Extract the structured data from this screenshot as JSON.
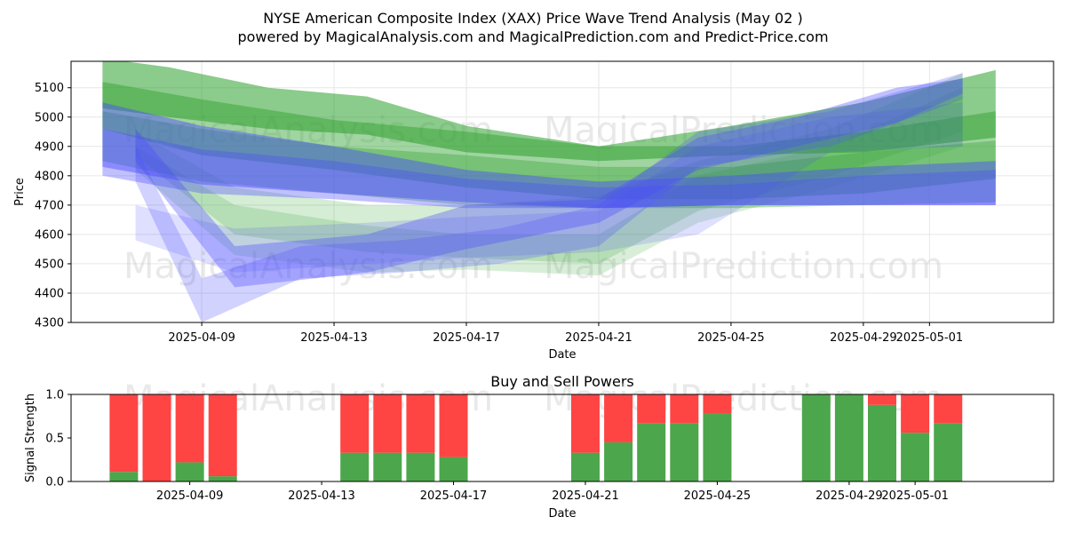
{
  "title_line1": "NYSE American Composite Index (XAX) Price Wave Trend Analysis (May 02 )",
  "title_line2": "powered by MagicalAnalysis.com and MagicalPrediction.com and Predict-Price.com",
  "watermarks": [
    "MagicalAnalysis.com",
    "MagicalPrediction.com"
  ],
  "chart_data": [
    {
      "type": "area",
      "title": "",
      "xlabel": "Date",
      "ylabel": "Price",
      "ylim": [
        4300,
        5190
      ],
      "xlim": [
        "2025-04-05",
        "2025-05-04"
      ],
      "y_ticks": [
        4300,
        4400,
        4500,
        4600,
        4700,
        4800,
        4900,
        5000,
        5100
      ],
      "x_ticks": [
        "2025-04-09",
        "2025-04-13",
        "2025-04-17",
        "2025-04-21",
        "2025-04-25",
        "2025-04-29",
        "2025-05-01"
      ],
      "grid": true,
      "series_colors": {
        "green": "#2ca02c",
        "blue": "#4b4bff"
      },
      "bands": [
        {
          "color": "green",
          "opacity": 0.55,
          "x": [
            "2025-04-06",
            "2025-04-08",
            "2025-04-11",
            "2025-04-14",
            "2025-04-17",
            "2025-04-21",
            "2025-04-25",
            "2025-04-29",
            "2025-05-03"
          ],
          "upper": [
            5200,
            5170,
            5100,
            5070,
            4970,
            4900,
            4970,
            5050,
            5160
          ],
          "lower": [
            5030,
            5000,
            4960,
            4940,
            4880,
            4850,
            4870,
            4880,
            4930
          ]
        },
        {
          "color": "green",
          "opacity": 0.45,
          "x": [
            "2025-04-06",
            "2025-04-09",
            "2025-04-13",
            "2025-04-17",
            "2025-04-21",
            "2025-04-25",
            "2025-04-29",
            "2025-05-03"
          ],
          "upper": [
            5120,
            5060,
            4990,
            4950,
            4900,
            4900,
            4950,
            5020
          ],
          "lower": [
            4960,
            4870,
            4820,
            4760,
            4720,
            4720,
            4740,
            4790
          ]
        },
        {
          "color": "green",
          "opacity": 0.35,
          "x": [
            "2025-04-06",
            "2025-04-09",
            "2025-04-13",
            "2025-04-17",
            "2025-04-21",
            "2025-04-25",
            "2025-04-29",
            "2025-05-03"
          ],
          "upper": [
            5020,
            4960,
            4900,
            4870,
            4830,
            4830,
            4880,
            4920
          ],
          "lower": [
            4850,
            4780,
            4740,
            4700,
            4690,
            4690,
            4700,
            4710
          ]
        },
        {
          "color": "green",
          "opacity": 0.2,
          "x": [
            "2025-04-07",
            "2025-04-10",
            "2025-04-14",
            "2025-04-17",
            "2025-04-21",
            "2025-04-24",
            "2025-04-28",
            "2025-05-02"
          ],
          "upper": [
            4950,
            4760,
            4700,
            4700,
            4730,
            4850,
            4960,
            5150
          ],
          "lower": [
            4870,
            4600,
            4540,
            4520,
            4500,
            4680,
            4800,
            4950
          ]
        },
        {
          "color": "green",
          "opacity": 0.18,
          "x": [
            "2025-04-07",
            "2025-04-10",
            "2025-04-14",
            "2025-04-17",
            "2025-04-21",
            "2025-04-24",
            "2025-04-28",
            "2025-05-02"
          ],
          "upper": [
            4900,
            4700,
            4630,
            4600,
            4600,
            4800,
            4900,
            5100
          ],
          "lower": [
            4820,
            4530,
            4470,
            4480,
            4460,
            4640,
            4760,
            4900
          ]
        },
        {
          "color": "blue",
          "opacity": 0.45,
          "x": [
            "2025-04-06",
            "2025-04-09",
            "2025-04-13",
            "2025-04-17",
            "2025-04-21",
            "2025-04-25",
            "2025-04-29",
            "2025-05-03"
          ],
          "upper": [
            5050,
            4970,
            4900,
            4820,
            4780,
            4800,
            4830,
            4850
          ],
          "lower": [
            4830,
            4770,
            4740,
            4710,
            4690,
            4700,
            4700,
            4700
          ]
        },
        {
          "color": "blue",
          "opacity": 0.35,
          "x": [
            "2025-04-06",
            "2025-04-09",
            "2025-04-13",
            "2025-04-17",
            "2025-04-21",
            "2025-04-25",
            "2025-04-29",
            "2025-05-03"
          ],
          "upper": [
            4960,
            4890,
            4850,
            4790,
            4760,
            4770,
            4800,
            4820
          ],
          "lower": [
            4800,
            4740,
            4720,
            4690,
            4690,
            4700,
            4700,
            4700
          ]
        },
        {
          "color": "blue",
          "opacity": 0.35,
          "x": [
            "2025-04-07",
            "2025-04-10",
            "2025-04-14",
            "2025-04-17",
            "2025-04-21",
            "2025-04-24",
            "2025-04-27",
            "2025-04-30",
            "2025-05-02"
          ],
          "upper": [
            4960,
            4560,
            4600,
            4700,
            4720,
            4930,
            5000,
            5100,
            5130
          ],
          "lower": [
            4850,
            4420,
            4470,
            4550,
            4640,
            4820,
            4900,
            4980,
            5080
          ]
        },
        {
          "color": "blue",
          "opacity": 0.25,
          "x": [
            "2025-04-07",
            "2025-04-09",
            "2025-04-12",
            "2025-04-15",
            "2025-04-18",
            "2025-04-21",
            "2025-04-24",
            "2025-04-28",
            "2025-05-02"
          ],
          "upper": [
            4900,
            4450,
            4560,
            4580,
            4620,
            4700,
            4950,
            5020,
            5150
          ],
          "lower": [
            4780,
            4300,
            4450,
            4470,
            4500,
            4560,
            4830,
            4900,
            5060
          ]
        },
        {
          "color": "blue",
          "opacity": 0.18,
          "x": [
            "2025-04-07",
            "2025-04-10",
            "2025-04-14",
            "2025-04-17",
            "2025-04-21",
            "2025-04-24",
            "2025-04-28",
            "2025-05-02"
          ],
          "upper": [
            4700,
            4620,
            4640,
            4660,
            4680,
            4900,
            5000,
            5050
          ],
          "lower": [
            4580,
            4470,
            4500,
            4520,
            4540,
            4600,
            4880,
            4900
          ]
        }
      ]
    },
    {
      "type": "bar",
      "title": "Buy and Sell Powers",
      "xlabel": "Date",
      "ylabel": "Signal Strength",
      "ylim": [
        0,
        1.0
      ],
      "y_ticks": [
        0.0,
        0.5,
        1.0
      ],
      "x_ticks": [
        "2025-04-09",
        "2025-04-13",
        "2025-04-17",
        "2025-04-21",
        "2025-04-25",
        "2025-04-29",
        "2025-05-01"
      ],
      "grid": false,
      "buy_color": "#4ca64c",
      "sell_color": "#ff4444",
      "categories": [
        "2025-04-07",
        "2025-04-08",
        "2025-04-09",
        "2025-04-10",
        "2025-04-14",
        "2025-04-15",
        "2025-04-16",
        "2025-04-17",
        "2025-04-21",
        "2025-04-22",
        "2025-04-23",
        "2025-04-24",
        "2025-04-25",
        "2025-04-28",
        "2025-04-29",
        "2025-04-30",
        "2025-05-01",
        "2025-05-02"
      ],
      "series": [
        {
          "name": "",
          "role": "buy",
          "values": [
            0.11,
            0.0,
            0.22,
            0.06,
            0.33,
            0.33,
            0.33,
            0.28,
            0.33,
            0.45,
            0.67,
            0.67,
            0.78,
            1.0,
            1.0,
            0.88,
            0.56,
            0.67
          ]
        },
        {
          "name": "",
          "role": "sell",
          "values": [
            0.89,
            1.0,
            0.78,
            0.94,
            0.67,
            0.67,
            0.67,
            0.72,
            0.67,
            0.55,
            0.33,
            0.33,
            0.22,
            0.0,
            0.0,
            0.12,
            0.44,
            0.33
          ]
        }
      ]
    }
  ]
}
